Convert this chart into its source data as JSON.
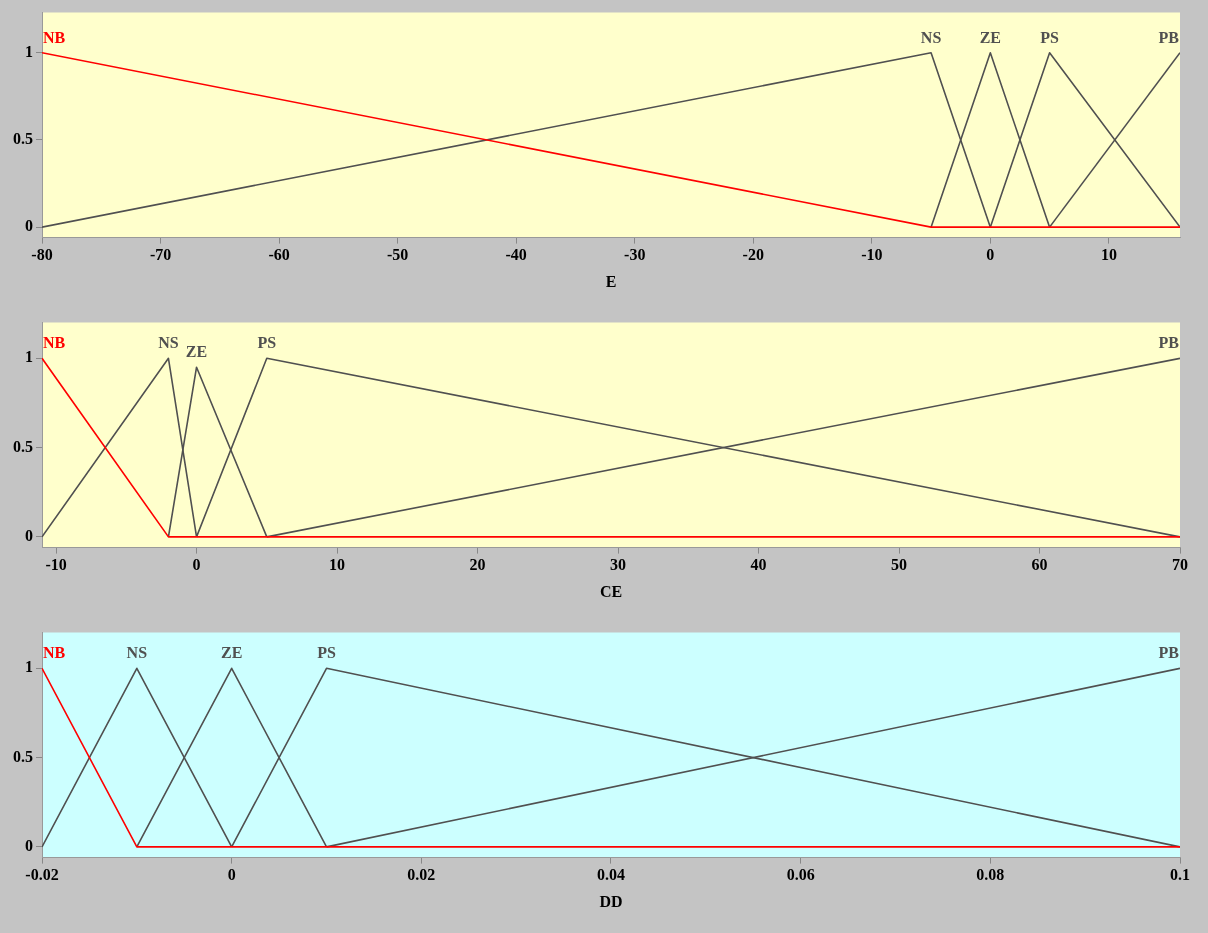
{
  "chart_data": [
    {
      "type": "line",
      "xlabel": "E",
      "xlim": [
        -80,
        16
      ],
      "xticks": [
        -80,
        -70,
        -60,
        -50,
        -40,
        -30,
        -20,
        -10,
        0,
        10
      ],
      "ylim": [
        -0.06,
        1.23
      ],
      "yticks": [
        0,
        0.5,
        1
      ],
      "grid": false,
      "legend": false,
      "marker": "none",
      "line_style": "solid",
      "series": [
        {
          "name": "NB",
          "color": "#ff0000",
          "x": [
            -80,
            -5,
            16
          ],
          "values": [
            1,
            0,
            0
          ]
        },
        {
          "name": "NS",
          "color": "#505050",
          "x": [
            -80,
            -5,
            0
          ],
          "values": [
            0,
            1,
            0
          ]
        },
        {
          "name": "ZE",
          "color": "#505050",
          "x": [
            -5,
            0,
            5
          ],
          "values": [
            0,
            1,
            0
          ]
        },
        {
          "name": "PS",
          "color": "#505050",
          "x": [
            0,
            5,
            16
          ],
          "values": [
            0,
            1,
            0
          ]
        },
        {
          "name": "PB",
          "color": "#505050",
          "x": [
            5,
            16
          ],
          "values": [
            0,
            1
          ]
        }
      ]
    },
    {
      "type": "line",
      "xlabel": "CE",
      "xlim": [
        -11,
        70
      ],
      "xticks": [
        -10,
        0,
        10,
        20,
        30,
        40,
        50,
        60,
        70
      ],
      "ylim": [
        -0.06,
        1.2
      ],
      "yticks": [
        0,
        0.5,
        1
      ],
      "grid": false,
      "legend": false,
      "marker": "none",
      "line_style": "solid",
      "series": [
        {
          "name": "NB",
          "color": "#ff0000",
          "x": [
            -11,
            -2,
            70
          ],
          "values": [
            1,
            0,
            0
          ]
        },
        {
          "name": "NS",
          "color": "#505050",
          "x": [
            -11,
            -2,
            0
          ],
          "values": [
            0,
            1,
            0
          ]
        },
        {
          "name": "ZE",
          "color": "#505050",
          "x": [
            -2,
            0,
            5
          ],
          "values": [
            0,
            0.95,
            0
          ]
        },
        {
          "name": "PS",
          "color": "#505050",
          "x": [
            0,
            5,
            70
          ],
          "values": [
            0,
            1,
            0
          ]
        },
        {
          "name": "PB",
          "color": "#505050",
          "x": [
            5,
            70
          ],
          "values": [
            0,
            1
          ]
        }
      ]
    },
    {
      "type": "line",
      "xlabel": "DD",
      "xlim": [
        -0.02,
        0.1
      ],
      "xticks": [
        -0.02,
        0,
        0.02,
        0.04,
        0.06,
        0.08,
        0.1
      ],
      "ylim": [
        -0.06,
        1.2
      ],
      "yticks": [
        0,
        0.5,
        1
      ],
      "grid": false,
      "legend": false,
      "marker": "none",
      "line_style": "solid",
      "series": [
        {
          "name": "NB",
          "color": "#ff0000",
          "x": [
            -0.02,
            -0.01,
            0.1
          ],
          "values": [
            1,
            0,
            0
          ]
        },
        {
          "name": "NS",
          "color": "#505050",
          "x": [
            -0.02,
            -0.01,
            0
          ],
          "values": [
            0,
            1,
            0
          ]
        },
        {
          "name": "ZE",
          "color": "#505050",
          "x": [
            -0.01,
            0,
            0.01
          ],
          "values": [
            0,
            1,
            0
          ]
        },
        {
          "name": "PS",
          "color": "#505050",
          "x": [
            0,
            0.01,
            0.1
          ],
          "values": [
            0,
            1,
            0
          ]
        },
        {
          "name": "PB",
          "color": "#505050",
          "x": [
            0.01,
            0.1
          ],
          "values": [
            0,
            1
          ]
        }
      ]
    }
  ]
}
